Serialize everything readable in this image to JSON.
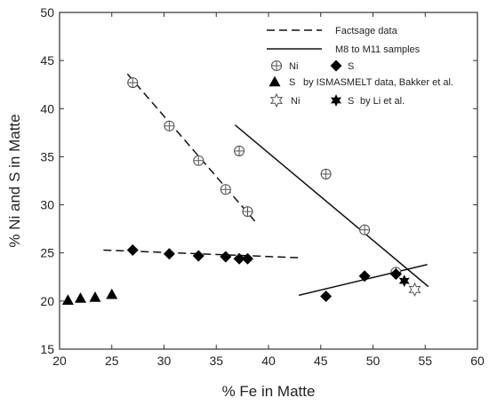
{
  "chart_data": {
    "type": "scatter",
    "title": "",
    "xlabel": "% Fe in Matte",
    "ylabel": "% Ni and S in Matte",
    "xlim": [
      20,
      60
    ],
    "ylim": [
      15,
      50
    ],
    "xticks": [
      "20",
      "25",
      "30",
      "35",
      "40",
      "45",
      "50",
      "55",
      "60"
    ],
    "yticks": [
      "15",
      "20",
      "25",
      "30",
      "35",
      "40",
      "45",
      "50"
    ],
    "grid": false,
    "legend_position": "top-right",
    "series": [
      {
        "name": "Ni",
        "marker": "circle-plus",
        "color": "#555555",
        "x": [
          27,
          30.5,
          33.3,
          35.9,
          37.2,
          38,
          45.5,
          49.2,
          52.2
        ],
        "y": [
          42.7,
          38.2,
          34.6,
          31.6,
          35.6,
          29.3,
          33.2,
          27.4,
          23
        ]
      },
      {
        "name": "S",
        "marker": "diamond",
        "color": "#000000",
        "x": [
          27,
          30.5,
          33.3,
          35.9,
          37.2,
          38,
          45.5,
          49.2,
          52.2
        ],
        "y": [
          25.3,
          24.9,
          24.7,
          24.6,
          24.4,
          24.4,
          20.5,
          22.6,
          22.8
        ]
      },
      {
        "name": "S",
        "marker": "triangle",
        "color": "#000000",
        "x": [
          20.8,
          22,
          23.4,
          25
        ],
        "y": [
          20.1,
          20.3,
          20.4,
          20.7
        ]
      },
      {
        "name": "Ni",
        "marker": "star-open",
        "color": "#555555",
        "x": [
          54
        ],
        "y": [
          21.2
        ]
      },
      {
        "name": "S",
        "marker": "star-filled",
        "color": "#000000",
        "x": [
          53
        ],
        "y": [
          22.1
        ]
      }
    ],
    "lines": [
      {
        "name": "Factsage data",
        "style": "dashed",
        "x": [
          26.5,
          38.7
        ],
        "y": [
          43.6,
          28.3
        ]
      },
      {
        "name": "Factsage data",
        "style": "dashed",
        "x": [
          24.2,
          43
        ],
        "y": [
          25.3,
          24.5
        ]
      },
      {
        "name": "M8 to M11 samples",
        "style": "solid",
        "x": [
          36.8,
          55.3
        ],
        "y": [
          38.3,
          21.5
        ]
      },
      {
        "name": "M8 to M11 samples",
        "style": "solid",
        "x": [
          42.9,
          55.2
        ],
        "y": [
          20.6,
          23.8
        ]
      }
    ],
    "legend": {
      "line_entries": [
        "Factsage data",
        "M8 to M11 samples"
      ],
      "row1": {
        "a": "Ni",
        "b": "S"
      },
      "row2": {
        "a": "S",
        "suffix": "by ISMASMELT data,  Bakker et al."
      },
      "row3": {
        "a": "Ni",
        "b": "S",
        "suffix": "by Li et al."
      }
    }
  }
}
